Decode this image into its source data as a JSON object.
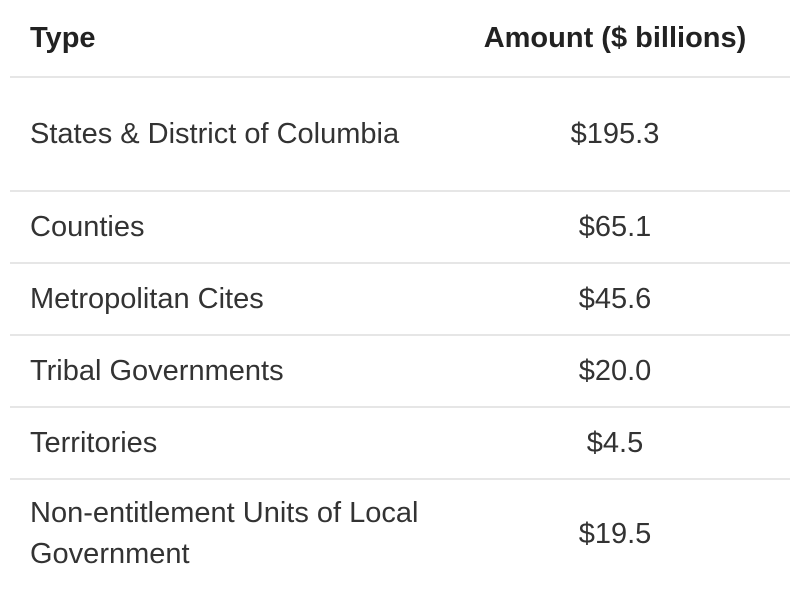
{
  "table": {
    "headers": {
      "type": "Type",
      "amount": "Amount ($ billions)"
    },
    "rows": [
      {
        "type": "States & District of Columbia",
        "amount": "$195.3"
      },
      {
        "type": "Counties",
        "amount": "$65.1"
      },
      {
        "type": "Metropolitan Cites",
        "amount": "$45.6"
      },
      {
        "type": "Tribal Governments",
        "amount": "$20.0"
      },
      {
        "type": "Territories",
        "amount": "$4.5"
      },
      {
        "type": "Non-entitlement Units of Local Government",
        "amount": "$19.5"
      }
    ]
  },
  "colors": {
    "text": "#333333",
    "header_text": "#222222",
    "divider": "#e6e6e6",
    "background": "#ffffff"
  }
}
